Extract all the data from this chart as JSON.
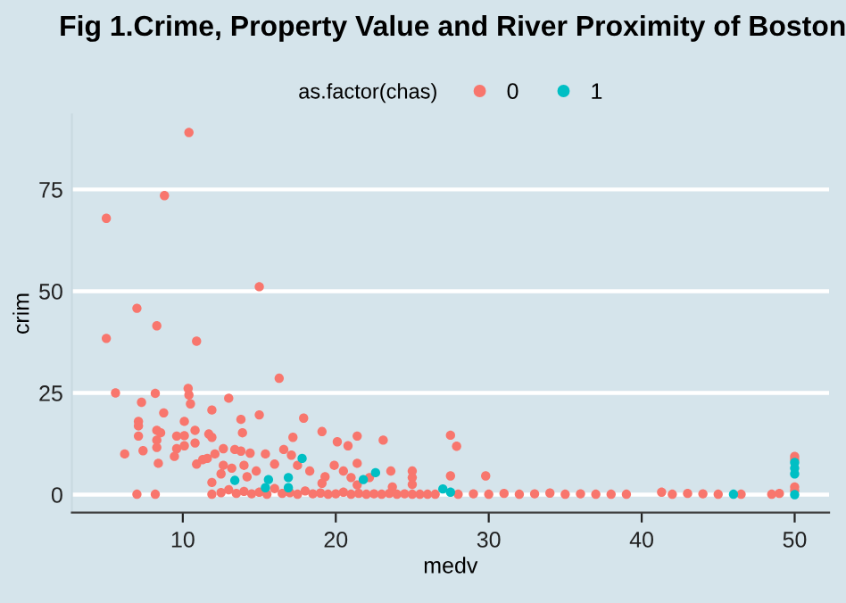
{
  "chart_data": {
    "type": "scatter",
    "title": "Fig 1.Crime, Property Value and River Proximity of Boston",
    "xlabel": "medv",
    "ylabel": "crim",
    "legend_title": "as.factor(chas)",
    "legend": "top",
    "grid": "y",
    "marker": "circle",
    "xlim": [
      2.75,
      52.25
    ],
    "ylim": [
      -4.4,
      93.4
    ],
    "xticks": [
      10,
      20,
      30,
      40,
      50
    ],
    "yticks": [
      0,
      25,
      50,
      75
    ],
    "series": [
      {
        "name": "0",
        "color": "#f8766d",
        "x": [
          10.4,
          8.8,
          5.0,
          15.0,
          7.0,
          8.3,
          5.0,
          10.9,
          16.3,
          5.6,
          10.35,
          10.4,
          10.5,
          8.2,
          7.3,
          13.0,
          8.75,
          15.0,
          11.9,
          17.9,
          13.8,
          7.1,
          7.1,
          7.1,
          8.3,
          8.55,
          8.3,
          8.3,
          8.4,
          9.6,
          9.6,
          10.1,
          10.1,
          10.1,
          10.8,
          10.8,
          9.45,
          7.4,
          6.2,
          7.0,
          8.2,
          11.9,
          11.9,
          11.9,
          11.7,
          13.9,
          17.2,
          19.1,
          21.4,
          23.1,
          20.1,
          20.8,
          21.4,
          16.6,
          17.1,
          10.9,
          11.3,
          11.6,
          12.1,
          12.65,
          13.4,
          13.8,
          14.4,
          15.4,
          12.65,
          13.2,
          14.0,
          14.8,
          14.2,
          12.5,
          16.0,
          17.5,
          18.3,
          19.3,
          19.9,
          20.5,
          21.0,
          22.2,
          23.6,
          25.0,
          25.0,
          25.0,
          19.1,
          21.4,
          23.7,
          12.5,
          13.0,
          13.5,
          14.0,
          14.5,
          15.0,
          15.5,
          16.0,
          16.5,
          17.0,
          17.5,
          18.0,
          18.5,
          19.0,
          19.5,
          20.0,
          20.5,
          21.0,
          21.5,
          22.0,
          22.5,
          23.0,
          23.5,
          24.0,
          24.5,
          25.0,
          25.5,
          26.0,
          27.5,
          27.9,
          27.5,
          29.8,
          26.5,
          28.0,
          29.0,
          30.0,
          31.0,
          32.0,
          33.0,
          34.0,
          35.0,
          36.0,
          37.0,
          38.0,
          39.0,
          41.3,
          42.0,
          43.0,
          44.0,
          45.0,
          46.5,
          48.5,
          49.0,
          50.0,
          50.0,
          50.0,
          50.0
        ],
        "values": [
          89.0,
          73.5,
          67.9,
          51.1,
          45.8,
          41.5,
          38.4,
          37.7,
          28.6,
          25.0,
          26.1,
          24.5,
          22.3,
          24.9,
          22.7,
          23.7,
          20.1,
          19.6,
          20.8,
          18.8,
          18.5,
          18.0,
          16.9,
          14.4,
          15.8,
          15.2,
          13.4,
          11.6,
          7.7,
          14.4,
          11.3,
          18.0,
          14.5,
          12.0,
          15.8,
          12.7,
          9.4,
          10.8,
          10.0,
          0.1,
          0.1,
          3.0,
          0.1,
          14.1,
          14.9,
          15.2,
          14.1,
          15.5,
          14.4,
          13.4,
          13.0,
          12.0,
          7.7,
          11.1,
          9.7,
          7.5,
          8.6,
          8.9,
          10.0,
          11.3,
          11.1,
          10.7,
          10.2,
          10.0,
          7.2,
          6.5,
          7.2,
          5.8,
          4.4,
          5.1,
          7.5,
          7.2,
          5.8,
          4.4,
          7.2,
          5.8,
          4.2,
          4.2,
          5.8,
          5.8,
          4.2,
          2.5,
          2.8,
          2.4,
          1.9,
          0.5,
          1.2,
          0.3,
          0.8,
          0.2,
          0.6,
          0.1,
          1.5,
          0.3,
          0.5,
          0.1,
          0.9,
          0.2,
          0.4,
          0.1,
          0.2,
          0.6,
          0.1,
          0.3,
          0.1,
          0.2,
          0.1,
          0.3,
          0.1,
          0.2,
          0.1,
          0.1,
          0.1,
          14.6,
          11.9,
          4.6,
          4.6,
          0.1,
          0.1,
          0.2,
          0.1,
          0.3,
          0.1,
          0.2,
          0.4,
          0.1,
          0.2,
          0.1,
          0.1,
          0.1,
          0.6,
          0.1,
          0.3,
          0.2,
          0.1,
          0.1,
          0.1,
          0.3,
          9.4,
          8.6,
          1.9,
          1.0
        ]
      },
      {
        "name": "1",
        "color": "#00bfc4",
        "x": [
          13.4,
          15.6,
          15.4,
          16.9,
          16.9,
          17.8,
          21.8,
          22.6,
          27.0,
          27.5,
          46.0,
          50.0,
          50.0,
          50.0,
          50.0
        ],
        "values": [
          3.5,
          3.7,
          1.7,
          4.2,
          1.7,
          8.9,
          3.7,
          5.4,
          1.4,
          0.6,
          0.1,
          7.9,
          6.5,
          5.1,
          0.0
        ]
      }
    ]
  }
}
